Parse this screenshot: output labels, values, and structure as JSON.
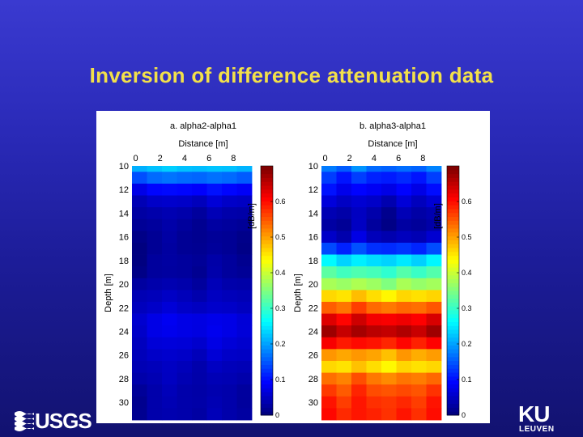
{
  "slide": {
    "title": "Inversion of difference attenuation data"
  },
  "logos": {
    "left": "USGS",
    "right_main": "KU",
    "right_sub": "LEUVEN"
  },
  "chart_data": [
    {
      "type": "heatmap",
      "title": "a. alpha2-alpha1",
      "xlabel": "Distance [m]",
      "ylabel": "Depth [m]",
      "x_ticks": [
        "0",
        "2",
        "4",
        "6",
        "8"
      ],
      "y_ticks": [
        "10",
        "12",
        "14",
        "16",
        "18",
        "20",
        "22",
        "24",
        "26",
        "28",
        "30"
      ],
      "xlim": [
        -0.3,
        9.5
      ],
      "ylim": [
        31.5,
        10
      ],
      "x_axis_position": "top",
      "colorbar": {
        "label": "[dB/m]",
        "ticks": [
          "0",
          "0.1",
          "0.2",
          "0.3",
          "0.4",
          "0.5",
          "0.6"
        ],
        "range": [
          0,
          0.7
        ],
        "colormap": "jet"
      },
      "depth_profile": [
        {
          "depth": 10,
          "value": 0.22
        },
        {
          "depth": 11,
          "value": 0.16
        },
        {
          "depth": 12,
          "value": 0.09
        },
        {
          "depth": 13,
          "value": 0.05
        },
        {
          "depth": 14,
          "value": 0.03
        },
        {
          "depth": 15,
          "value": 0.02
        },
        {
          "depth": 16,
          "value": 0.015
        },
        {
          "depth": 17,
          "value": 0.015
        },
        {
          "depth": 18,
          "value": 0.02
        },
        {
          "depth": 19,
          "value": 0.02
        },
        {
          "depth": 20,
          "value": 0.03
        },
        {
          "depth": 21,
          "value": 0.04
        },
        {
          "depth": 22,
          "value": 0.05
        },
        {
          "depth": 23,
          "value": 0.07
        },
        {
          "depth": 24,
          "value": 0.07
        },
        {
          "depth": 25,
          "value": 0.06
        },
        {
          "depth": 26,
          "value": 0.05
        },
        {
          "depth": 27,
          "value": 0.04
        },
        {
          "depth": 28,
          "value": 0.035
        },
        {
          "depth": 29,
          "value": 0.03
        },
        {
          "depth": 30,
          "value": 0.03
        },
        {
          "depth": 31,
          "value": 0.03
        }
      ],
      "lateral_variation": [
        -0.02,
        0.0,
        0.01,
        0.0,
        -0.01,
        0.01,
        0.0,
        -0.01
      ]
    },
    {
      "type": "heatmap",
      "title": "b. alpha3-alpha1",
      "xlabel": "Distance [m]",
      "ylabel": "Depth  [m]",
      "x_ticks": [
        "0",
        "2",
        "4",
        "6",
        "8"
      ],
      "y_ticks": [
        "10",
        "12",
        "14",
        "16",
        "18",
        "20",
        "22",
        "24",
        "26",
        "28",
        "30"
      ],
      "xlim": [
        -0.3,
        9.5
      ],
      "ylim": [
        31.5,
        10
      ],
      "x_axis_position": "top",
      "colorbar": {
        "label": "[dB/m]",
        "ticks": [
          "0",
          "0.1",
          "0.2",
          "0.3",
          "0.4",
          "0.5",
          "0.6"
        ],
        "range": [
          0,
          0.7
        ],
        "colormap": "jet"
      },
      "depth_profile": [
        {
          "depth": 10,
          "value": 0.16
        },
        {
          "depth": 11,
          "value": 0.11
        },
        {
          "depth": 12,
          "value": 0.08
        },
        {
          "depth": 13,
          "value": 0.05
        },
        {
          "depth": 14,
          "value": 0.03
        },
        {
          "depth": 15,
          "value": 0.02
        },
        {
          "depth": 16,
          "value": 0.04
        },
        {
          "depth": 17,
          "value": 0.12
        },
        {
          "depth": 18,
          "value": 0.24
        },
        {
          "depth": 19,
          "value": 0.31
        },
        {
          "depth": 20,
          "value": 0.37
        },
        {
          "depth": 21,
          "value": 0.46
        },
        {
          "depth": 22,
          "value": 0.54
        },
        {
          "depth": 23,
          "value": 0.62
        },
        {
          "depth": 24,
          "value": 0.66
        },
        {
          "depth": 25,
          "value": 0.6
        },
        {
          "depth": 26,
          "value": 0.5
        },
        {
          "depth": 27,
          "value": 0.46
        },
        {
          "depth": 28,
          "value": 0.53
        },
        {
          "depth": 29,
          "value": 0.56
        },
        {
          "depth": 30,
          "value": 0.58
        },
        {
          "depth": 31,
          "value": 0.59
        }
      ],
      "lateral_variation": [
        0.02,
        -0.01,
        0.03,
        0.0,
        -0.02,
        0.01,
        -0.01,
        0.02
      ]
    }
  ]
}
